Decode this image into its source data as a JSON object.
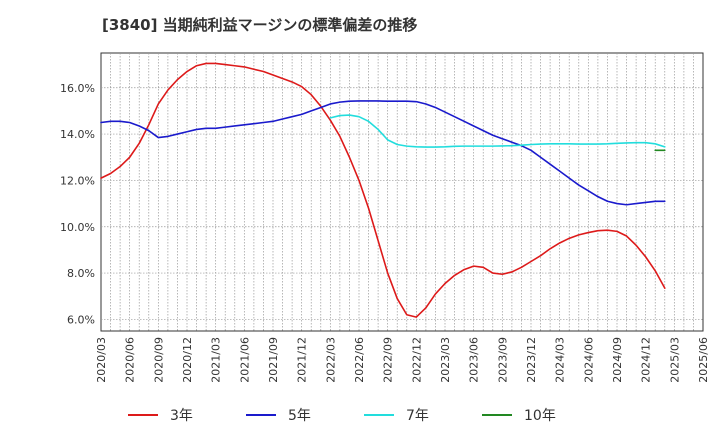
{
  "chart_data": {
    "type": "line",
    "title": "[3840]  当期純利益マージンの標準偏差の推移",
    "xlabel": "",
    "ylabel": "",
    "ylim": [
      5.5,
      17.5
    ],
    "y_ticks": [
      6,
      8,
      10,
      12,
      14,
      16
    ],
    "y_tick_labels": [
      "6.0%",
      "8.0%",
      "10.0%",
      "12.0%",
      "14.0%",
      "16.0%"
    ],
    "x_tick_labels": [
      "2020/03",
      "2020/06",
      "2020/09",
      "2020/12",
      "2021/03",
      "2021/06",
      "2021/09",
      "2021/12",
      "2022/03",
      "2022/06",
      "2022/09",
      "2022/12",
      "2023/03",
      "2023/06",
      "2023/09",
      "2023/12",
      "2024/03",
      "2024/06",
      "2024/09",
      "2024/12",
      "2025/03",
      "2025/06"
    ],
    "grid": true,
    "legend_position": "bottom",
    "series": [
      {
        "name": "3年",
        "color": "#dd1a1a",
        "points": [
          [
            "2020/03",
            12.1
          ],
          [
            "2020/04",
            12.3
          ],
          [
            "2020/05",
            12.6
          ],
          [
            "2020/06",
            13.0
          ],
          [
            "2020/07",
            13.6
          ],
          [
            "2020/08",
            14.4
          ],
          [
            "2020/09",
            15.3
          ],
          [
            "2020/10",
            15.9
          ],
          [
            "2020/11",
            16.35
          ],
          [
            "2020/12",
            16.7
          ],
          [
            "2021/01",
            16.95
          ],
          [
            "2021/02",
            17.05
          ],
          [
            "2021/03",
            17.05
          ],
          [
            "2021/04",
            17.0
          ],
          [
            "2021/05",
            16.95
          ],
          [
            "2021/06",
            16.9
          ],
          [
            "2021/07",
            16.8
          ],
          [
            "2021/08",
            16.7
          ],
          [
            "2021/09",
            16.55
          ],
          [
            "2021/10",
            16.4
          ],
          [
            "2021/11",
            16.25
          ],
          [
            "2021/12",
            16.05
          ],
          [
            "2022/01",
            15.7
          ],
          [
            "2022/02",
            15.2
          ],
          [
            "2022/03",
            14.6
          ],
          [
            "2022/04",
            13.9
          ],
          [
            "2022/05",
            13.0
          ],
          [
            "2022/06",
            12.0
          ],
          [
            "2022/07",
            10.8
          ],
          [
            "2022/08",
            9.4
          ],
          [
            "2022/09",
            8.0
          ],
          [
            "2022/10",
            6.9
          ],
          [
            "2022/11",
            6.2
          ],
          [
            "2022/12",
            6.1
          ],
          [
            "2023/01",
            6.5
          ],
          [
            "2023/02",
            7.1
          ],
          [
            "2023/03",
            7.55
          ],
          [
            "2023/04",
            7.9
          ],
          [
            "2023/05",
            8.15
          ],
          [
            "2023/06",
            8.3
          ],
          [
            "2023/07",
            8.25
          ],
          [
            "2023/08",
            8.0
          ],
          [
            "2023/09",
            7.95
          ],
          [
            "2023/10",
            8.05
          ],
          [
            "2023/11",
            8.25
          ],
          [
            "2023/12",
            8.5
          ],
          [
            "2024/01",
            8.75
          ],
          [
            "2024/02",
            9.05
          ],
          [
            "2024/03",
            9.3
          ],
          [
            "2024/04",
            9.5
          ],
          [
            "2024/05",
            9.65
          ],
          [
            "2024/06",
            9.75
          ],
          [
            "2024/07",
            9.83
          ],
          [
            "2024/08",
            9.85
          ],
          [
            "2024/09",
            9.8
          ],
          [
            "2024/10",
            9.6
          ],
          [
            "2024/11",
            9.2
          ],
          [
            "2024/12",
            8.7
          ],
          [
            "2025/01",
            8.1
          ],
          [
            "2025/02",
            7.35
          ]
        ]
      },
      {
        "name": "5年",
        "color": "#1a1acc",
        "points": [
          [
            "2020/03",
            14.5
          ],
          [
            "2020/04",
            14.55
          ],
          [
            "2020/05",
            14.55
          ],
          [
            "2020/06",
            14.5
          ],
          [
            "2020/07",
            14.35
          ],
          [
            "2020/08",
            14.15
          ],
          [
            "2020/09",
            13.85
          ],
          [
            "2020/10",
            13.9
          ],
          [
            "2020/11",
            14.0
          ],
          [
            "2020/12",
            14.1
          ],
          [
            "2021/01",
            14.2
          ],
          [
            "2021/02",
            14.25
          ],
          [
            "2021/03",
            14.25
          ],
          [
            "2021/04",
            14.3
          ],
          [
            "2021/05",
            14.35
          ],
          [
            "2021/06",
            14.4
          ],
          [
            "2021/07",
            14.45
          ],
          [
            "2021/08",
            14.5
          ],
          [
            "2021/09",
            14.55
          ],
          [
            "2021/10",
            14.65
          ],
          [
            "2021/11",
            14.75
          ],
          [
            "2021/12",
            14.85
          ],
          [
            "2022/01",
            15.0
          ],
          [
            "2022/02",
            15.15
          ],
          [
            "2022/03",
            15.3
          ],
          [
            "2022/04",
            15.38
          ],
          [
            "2022/05",
            15.42
          ],
          [
            "2022/06",
            15.43
          ],
          [
            "2022/07",
            15.43
          ],
          [
            "2022/08",
            15.43
          ],
          [
            "2022/09",
            15.42
          ],
          [
            "2022/10",
            15.42
          ],
          [
            "2022/11",
            15.42
          ],
          [
            "2022/12",
            15.4
          ],
          [
            "2023/01",
            15.3
          ],
          [
            "2023/02",
            15.15
          ],
          [
            "2023/03",
            14.95
          ],
          [
            "2023/04",
            14.75
          ],
          [
            "2023/05",
            14.55
          ],
          [
            "2023/06",
            14.35
          ],
          [
            "2023/07",
            14.15
          ],
          [
            "2023/08",
            13.95
          ],
          [
            "2023/09",
            13.8
          ],
          [
            "2023/10",
            13.65
          ],
          [
            "2023/11",
            13.5
          ],
          [
            "2023/12",
            13.3
          ],
          [
            "2024/01",
            13.0
          ],
          [
            "2024/02",
            12.7
          ],
          [
            "2024/03",
            12.4
          ],
          [
            "2024/04",
            12.1
          ],
          [
            "2024/05",
            11.8
          ],
          [
            "2024/06",
            11.55
          ],
          [
            "2024/07",
            11.3
          ],
          [
            "2024/08",
            11.1
          ],
          [
            "2024/09",
            11.0
          ],
          [
            "2024/10",
            10.95
          ],
          [
            "2024/11",
            11.0
          ],
          [
            "2024/12",
            11.05
          ],
          [
            "2025/01",
            11.1
          ],
          [
            "2025/02",
            11.1
          ]
        ]
      },
      {
        "name": "7年",
        "color": "#22dddd",
        "points": [
          [
            "2022/03",
            14.7
          ],
          [
            "2022/04",
            14.8
          ],
          [
            "2022/05",
            14.82
          ],
          [
            "2022/06",
            14.75
          ],
          [
            "2022/07",
            14.55
          ],
          [
            "2022/08",
            14.2
          ],
          [
            "2022/09",
            13.75
          ],
          [
            "2022/10",
            13.55
          ],
          [
            "2022/11",
            13.48
          ],
          [
            "2022/12",
            13.45
          ],
          [
            "2023/01",
            13.44
          ],
          [
            "2023/02",
            13.44
          ],
          [
            "2023/03",
            13.45
          ],
          [
            "2023/04",
            13.47
          ],
          [
            "2023/05",
            13.48
          ],
          [
            "2023/06",
            13.48
          ],
          [
            "2023/07",
            13.48
          ],
          [
            "2023/08",
            13.48
          ],
          [
            "2023/09",
            13.49
          ],
          [
            "2023/10",
            13.5
          ],
          [
            "2023/11",
            13.52
          ],
          [
            "2023/12",
            13.55
          ],
          [
            "2024/01",
            13.57
          ],
          [
            "2024/02",
            13.58
          ],
          [
            "2024/03",
            13.58
          ],
          [
            "2024/04",
            13.58
          ],
          [
            "2024/05",
            13.57
          ],
          [
            "2024/06",
            13.57
          ],
          [
            "2024/07",
            13.57
          ],
          [
            "2024/08",
            13.58
          ],
          [
            "2024/09",
            13.6
          ],
          [
            "2024/10",
            13.62
          ],
          [
            "2024/11",
            13.63
          ],
          [
            "2024/12",
            13.63
          ],
          [
            "2025/01",
            13.58
          ],
          [
            "2025/02",
            13.45
          ]
        ]
      },
      {
        "name": "10年",
        "color": "#228822",
        "points": [
          [
            "2025/01",
            13.3
          ],
          [
            "2025/02",
            13.3
          ]
        ]
      }
    ]
  }
}
